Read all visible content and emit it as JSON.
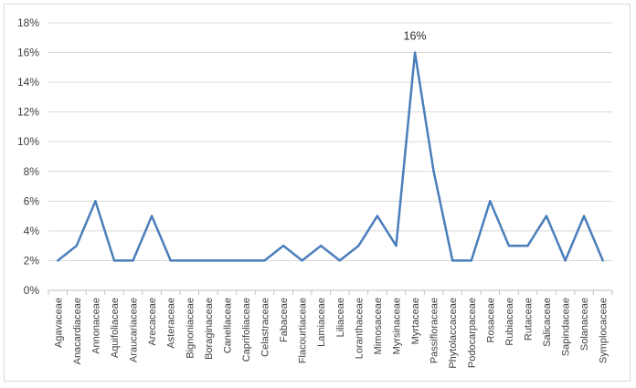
{
  "chart_data": {
    "type": "line",
    "categories": [
      "Agavaceae",
      "Anacardiaceae",
      "Annonaceae",
      "Aquifoliaceae",
      "Araucariaceae",
      "Arecaceae",
      "Asteraceae",
      "Bignoniaceae",
      "Boraginaceae",
      "Canellaceae",
      "Caprifoliaceae",
      "Celastraceae",
      "Fabaceae",
      "Flacourtiaceae",
      "Lamiaceae",
      "Liliaceae",
      "Loranthaceae",
      "Mimosaceae",
      "Myrsinaceae",
      "Myrtaceae",
      "Passifloraceae",
      "Phytolaccaceae",
      "Podocarpaceae",
      "Rosaceae",
      "Rubiaceae",
      "Rutaceae",
      "Salicaceae",
      "Sapindaceae",
      "Solanaceae",
      "Symplocaceae"
    ],
    "series": [
      {
        "values": [
          2,
          3,
          6,
          2,
          2,
          5,
          2,
          2,
          2,
          2,
          2,
          2,
          3,
          2,
          3,
          2,
          3,
          5,
          3,
          16,
          8,
          2,
          2,
          6,
          3,
          3,
          5,
          2,
          5,
          2
        ]
      }
    ],
    "ylim": [
      0,
      18
    ],
    "y_ticks": [
      "0%",
      "2%",
      "4%",
      "6%",
      "8%",
      "10%",
      "12%",
      "14%",
      "16%",
      "18%"
    ],
    "data_labels": [
      {
        "index": 19,
        "text": "16%"
      }
    ],
    "grid": true,
    "legend": "none",
    "colors": {
      "line": "#4a7ebb",
      "grid": "#d9d9d9",
      "text": "#404040"
    }
  }
}
